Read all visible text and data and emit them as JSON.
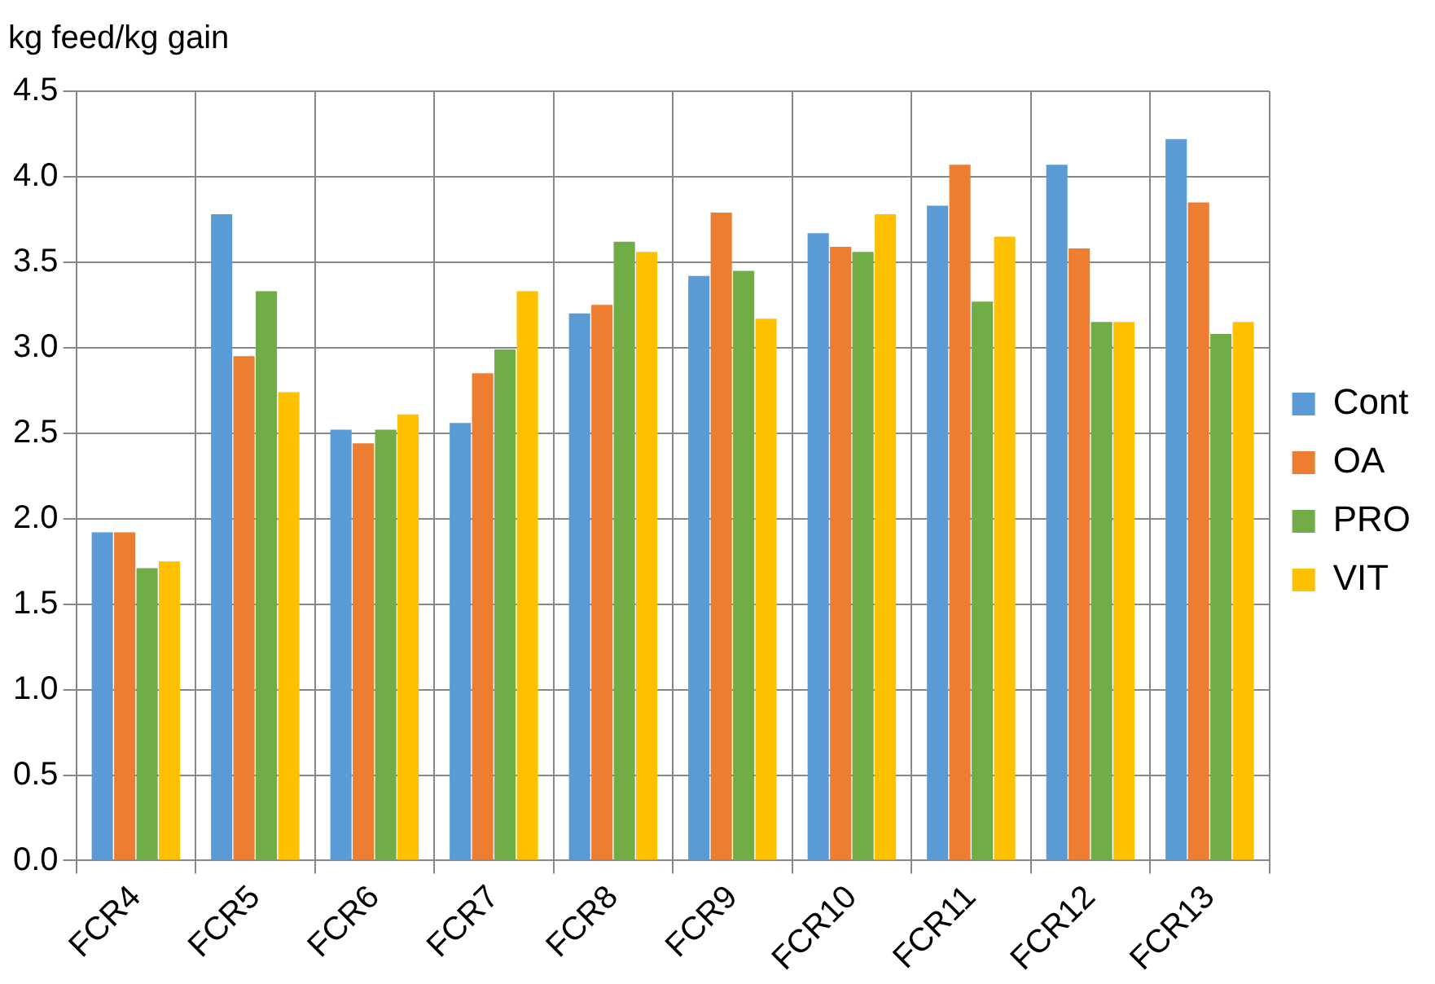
{
  "chart_data": {
    "type": "bar",
    "ylabel": "kg feed/kg gain",
    "categories": [
      "FCR4",
      "FCR5",
      "FCR6",
      "FCR7",
      "FCR8",
      "FCR9",
      "FCR10",
      "FCR11",
      "FCR12",
      "FCR13"
    ],
    "series": [
      {
        "name": "Cont",
        "color": "#5b9bd5",
        "values": [
          1.92,
          3.78,
          2.52,
          2.56,
          3.2,
          3.42,
          3.67,
          3.83,
          4.07,
          4.22
        ]
      },
      {
        "name": "OA",
        "color": "#ed7d31",
        "values": [
          1.92,
          2.95,
          2.44,
          2.85,
          3.25,
          3.79,
          3.59,
          4.07,
          3.58,
          3.85
        ]
      },
      {
        "name": "PRO",
        "color": "#70ad47",
        "values": [
          1.71,
          3.33,
          2.52,
          2.99,
          3.62,
          3.45,
          3.56,
          3.27,
          3.15,
          3.08
        ]
      },
      {
        "name": "VIT",
        "color": "#ffc000",
        "values": [
          1.75,
          2.74,
          2.61,
          3.33,
          3.56,
          3.17,
          3.78,
          3.65,
          3.15,
          3.15
        ]
      }
    ],
    "ylim": [
      0,
      4.5
    ],
    "yticks": [
      {
        "value": 0,
        "label": "0.0"
      },
      {
        "value": 0.5,
        "label": "0.5"
      },
      {
        "value": 1,
        "label": "1.0"
      },
      {
        "value": 1.5,
        "label": "1.5"
      },
      {
        "value": 2,
        "label": "2.0"
      },
      {
        "value": 2.5,
        "label": "2.5"
      },
      {
        "value": 3,
        "label": "3.0"
      },
      {
        "value": 3.5,
        "label": "3.5"
      },
      {
        "value": 4,
        "label": "4.0"
      },
      {
        "value": 4.5,
        "label": "4.5"
      }
    ],
    "grid": true,
    "legend": "right"
  }
}
